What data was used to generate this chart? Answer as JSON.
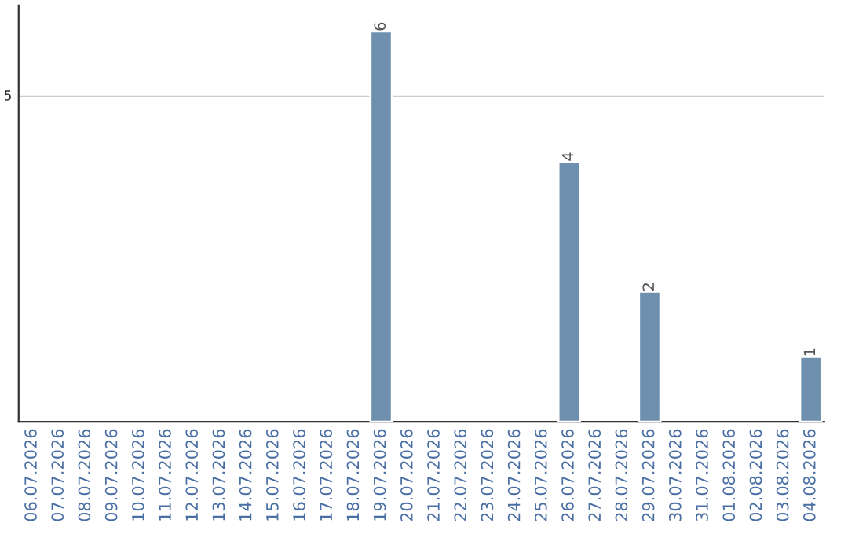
{
  "chart_data": {
    "type": "bar",
    "categories": [
      "06.07.2026",
      "07.07.2026",
      "08.07.2026",
      "09.07.2026",
      "10.07.2026",
      "11.07.2026",
      "12.07.2026",
      "13.07.2026",
      "14.07.2026",
      "15.07.2026",
      "16.07.2026",
      "17.07.2026",
      "18.07.2026",
      "19.07.2026",
      "20.07.2026",
      "21.07.2026",
      "22.07.2026",
      "23.07.2026",
      "24.07.2026",
      "25.07.2026",
      "26.07.2026",
      "27.07.2026",
      "28.07.2026",
      "29.07.2026",
      "30.07.2026",
      "31.07.2026",
      "01.08.2026",
      "02.08.2026",
      "03.08.2026",
      "04.08.2026"
    ],
    "values": [
      null,
      null,
      null,
      null,
      null,
      null,
      null,
      null,
      null,
      null,
      null,
      null,
      null,
      6,
      null,
      null,
      null,
      null,
      null,
      null,
      4,
      null,
      null,
      2,
      null,
      null,
      null,
      null,
      null,
      1
    ],
    "data_labels": true,
    "color": "#6e8fad",
    "ylim": [
      0,
      6.4
    ],
    "ref_lines": [
      {
        "axis": "y",
        "value": 5,
        "label": "5",
        "color": "#cccccc"
      }
    ],
    "legend": false
  }
}
